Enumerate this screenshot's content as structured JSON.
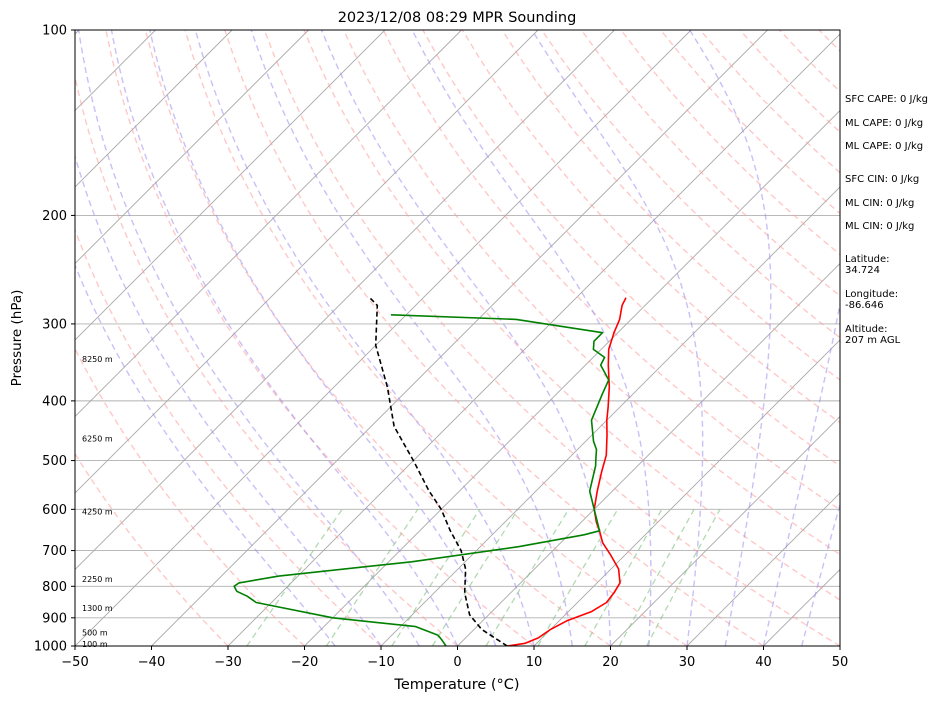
{
  "chart_data": {
    "type": "line",
    "title": "2023/12/08 08:29 MPR Sounding",
    "xlabel": "Temperature (°C)",
    "ylabel": "Pressure (hPa)",
    "xlim": [
      -50,
      50
    ],
    "ylim": [
      1000,
      100
    ],
    "yscale": "log",
    "x_ticks": [
      -50,
      -40,
      -30,
      -20,
      -10,
      0,
      10,
      20,
      30,
      40,
      50
    ],
    "y_ticks": [
      1000,
      900,
      800,
      700,
      600,
      500,
      400,
      300,
      200,
      100
    ],
    "grid": true,
    "series": [
      {
        "name": "",
        "role": "temperature",
        "color": "#ff0000",
        "points": [
          [
            6.5,
            1000
          ],
          [
            8.5,
            990
          ],
          [
            9.5,
            970
          ],
          [
            10,
            940
          ],
          [
            11,
            910
          ],
          [
            13,
            880
          ],
          [
            13.8,
            850
          ],
          [
            13.5,
            820
          ],
          [
            13,
            790
          ],
          [
            11,
            750
          ],
          [
            8,
            710
          ],
          [
            5.5,
            680
          ],
          [
            3.5,
            650
          ],
          [
            2,
            630
          ],
          [
            0,
            600
          ],
          [
            -2,
            560
          ],
          [
            -4,
            520
          ],
          [
            -5.5,
            490
          ],
          [
            -8,
            455
          ],
          [
            -10,
            430
          ],
          [
            -11.5,
            410
          ],
          [
            -14,
            380
          ],
          [
            -17,
            350
          ],
          [
            -19,
            330
          ],
          [
            -20.5,
            310
          ],
          [
            -21.5,
            295
          ],
          [
            -23,
            280
          ],
          [
            -23.5,
            272
          ]
        ]
      },
      {
        "name": "",
        "role": "dewpoint",
        "color": "#008000",
        "points": [
          [
            -1.5,
            1000
          ],
          [
            -3,
            975
          ],
          [
            -4,
            960
          ],
          [
            -8,
            930
          ],
          [
            -20,
            900
          ],
          [
            -32,
            850
          ],
          [
            -34,
            830
          ],
          [
            -36,
            815
          ],
          [
            -37,
            800
          ],
          [
            -36.8,
            790
          ],
          [
            -32.5,
            770
          ],
          [
            -17,
            730
          ],
          [
            -5,
            690
          ],
          [
            2,
            660
          ],
          [
            3.5,
            650
          ],
          [
            0,
            600
          ],
          [
            -3,
            560
          ],
          [
            -5.5,
            510
          ],
          [
            -6.5,
            495
          ],
          [
            -7.5,
            480
          ],
          [
            -9,
            465
          ],
          [
            -12,
            430
          ],
          [
            -14,
            390
          ],
          [
            -15,
            370
          ],
          [
            -18,
            350
          ],
          [
            -18.5,
            340
          ],
          [
            -21,
            330
          ],
          [
            -22,
            320
          ],
          [
            -22,
            310
          ],
          [
            -35,
            295
          ],
          [
            -52,
            290
          ]
        ]
      },
      {
        "name": "",
        "role": "parcel",
        "color": "#000000",
        "dashed": true,
        "points": [
          [
            6.5,
            1000
          ],
          [
            1,
            940
          ],
          [
            -2.5,
            890
          ],
          [
            -6,
            820
          ],
          [
            -9,
            750
          ],
          [
            -12,
            700
          ],
          [
            -16,
            650
          ],
          [
            -20,
            600
          ],
          [
            -24,
            560
          ],
          [
            -30,
            500
          ],
          [
            -37,
            440
          ],
          [
            -43,
            380
          ],
          [
            -50,
            325
          ],
          [
            -55,
            280
          ],
          [
            -57,
            272
          ]
        ]
      }
    ],
    "height_labels": [
      {
        "label": "100 m",
        "p": 993
      },
      {
        "label": "500 m",
        "p": 950
      },
      {
        "label": "1300 m",
        "p": 867
      },
      {
        "label": "2250 m",
        "p": 779
      },
      {
        "label": "4250 m",
        "p": 605
      },
      {
        "label": "6250 m",
        "p": 460
      },
      {
        "label": "8250 m",
        "p": 342
      }
    ],
    "side_labels": [
      {
        "lines": [
          "SFC CAPE: 0 J/kg"
        ],
        "y": 98
      },
      {
        "lines": [
          "ML CAPE: 0 J/kg"
        ],
        "y": 122
      },
      {
        "lines": [
          "ML CAPE: 0 J/kg"
        ],
        "y": 145
      },
      {
        "lines": [
          "SFC CIN: 0 J/kg"
        ],
        "y": 178
      },
      {
        "lines": [
          "ML CIN: 0 J/kg"
        ],
        "y": 202
      },
      {
        "lines": [
          "ML CIN: 0 J/kg"
        ],
        "y": 225
      },
      {
        "lines": [
          "Latitude:",
          "34.724"
        ],
        "y": 258
      },
      {
        "lines": [
          "Longitude:",
          "-86.646"
        ],
        "y": 293
      },
      {
        "lines": [
          "Altitude:",
          "207 m AGL"
        ],
        "y": 328
      }
    ],
    "colors": {
      "isotherm": "#a8a8a8",
      "dry_adiabat": "#ff9a9a",
      "moist_adiabat": "#9b8cf0",
      "mixing_ratio": "#7fbf7f"
    }
  }
}
